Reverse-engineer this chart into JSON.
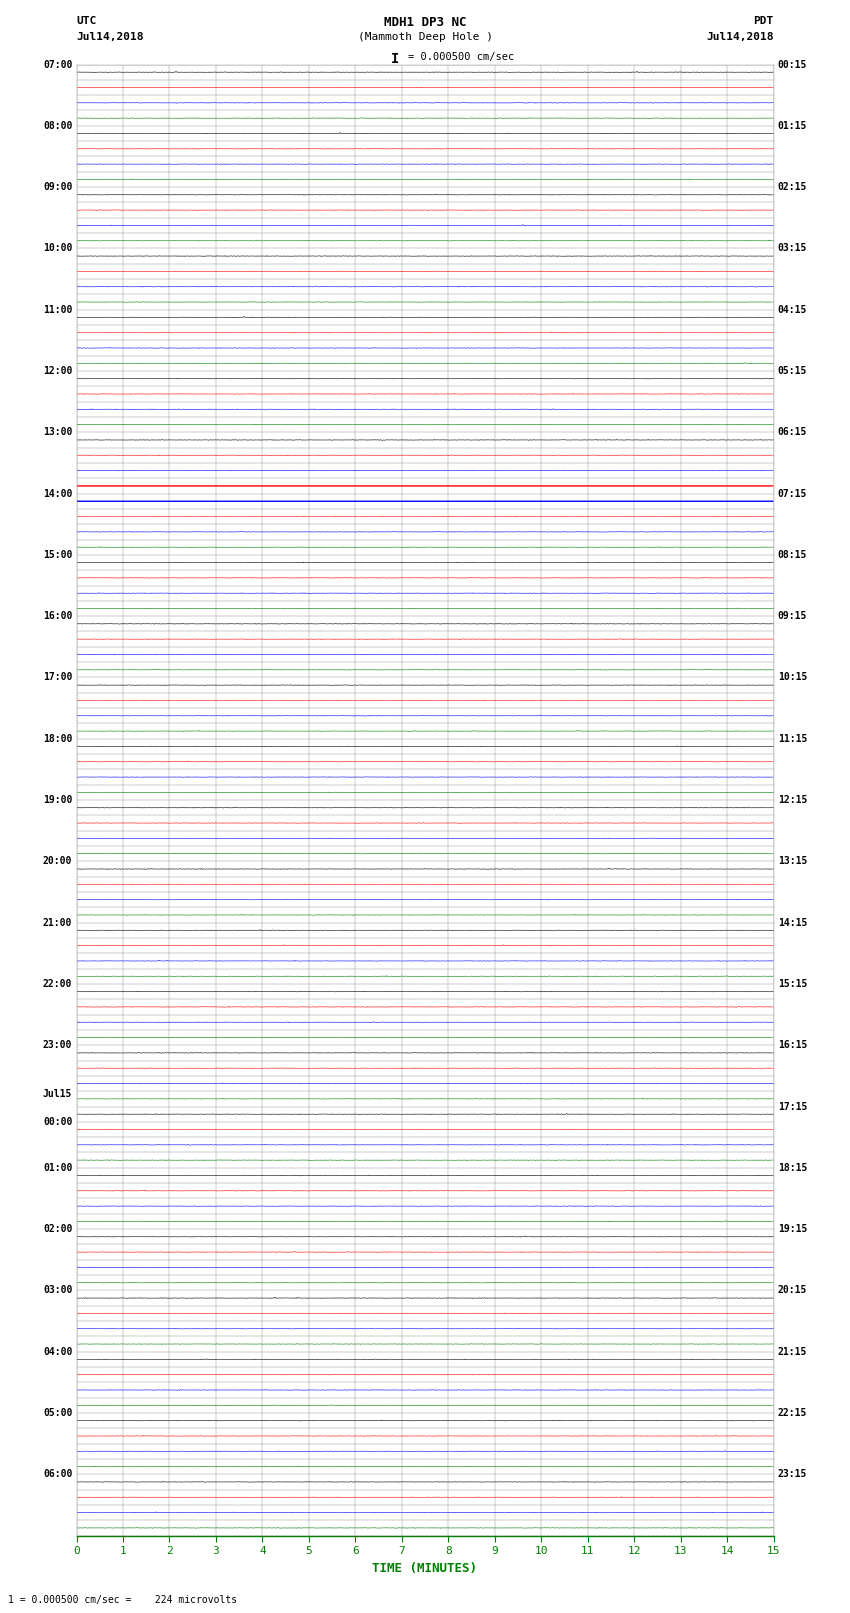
{
  "title_line1": "MDH1 DP3 NC",
  "title_line2": "(Mammoth Deep Hole )",
  "scale_label": "= 0.000500 cm/sec",
  "scale_bar": "I",
  "left_label_top": "UTC",
  "left_label_date": "Jul14,2018",
  "right_label_top": "PDT",
  "right_label_date": "Jul14,2018",
  "bottom_note": "1 = 0.000500 cm/sec =    224 microvolts",
  "xlabel": "TIME (MINUTES)",
  "left_times": [
    "07:00",
    "",
    "",
    "",
    "08:00",
    "",
    "",
    "",
    "09:00",
    "",
    "",
    "",
    "10:00",
    "",
    "",
    "",
    "11:00",
    "",
    "",
    "",
    "12:00",
    "",
    "",
    "",
    "13:00",
    "",
    "",
    "",
    "14:00",
    "",
    "",
    "",
    "15:00",
    "",
    "",
    "",
    "16:00",
    "",
    "",
    "",
    "17:00",
    "",
    "",
    "",
    "18:00",
    "",
    "",
    "",
    "19:00",
    "",
    "",
    "",
    "20:00",
    "",
    "",
    "",
    "21:00",
    "",
    "",
    "",
    "22:00",
    "",
    "",
    "",
    "23:00",
    "",
    "",
    "",
    "Jul15",
    "00:00",
    "",
    "",
    "01:00",
    "",
    "",
    "",
    "02:00",
    "",
    "",
    "",
    "03:00",
    "",
    "",
    "",
    "04:00",
    "",
    "",
    "",
    "05:00",
    "",
    "",
    "",
    "06:00",
    "",
    "",
    ""
  ],
  "right_times": [
    "00:15",
    "",
    "",
    "",
    "01:15",
    "",
    "",
    "",
    "02:15",
    "",
    "",
    "",
    "03:15",
    "",
    "",
    "",
    "04:15",
    "",
    "",
    "",
    "05:15",
    "",
    "",
    "",
    "06:15",
    "",
    "",
    "",
    "07:15",
    "",
    "",
    "",
    "08:15",
    "",
    "",
    "",
    "09:15",
    "",
    "",
    "",
    "10:15",
    "",
    "",
    "",
    "11:15",
    "",
    "",
    "",
    "12:15",
    "",
    "",
    "",
    "13:15",
    "",
    "",
    "",
    "14:15",
    "",
    "",
    "",
    "15:15",
    "",
    "",
    "",
    "16:15",
    "",
    "",
    "",
    "17:15",
    "",
    "",
    "",
    "18:15",
    "",
    "",
    "",
    "19:15",
    "",
    "",
    "",
    "20:15",
    "",
    "",
    "",
    "21:15",
    "",
    "",
    "",
    "22:15",
    "",
    "",
    "",
    "23:15",
    "",
    "",
    ""
  ],
  "n_rows": 96,
  "n_minutes": 15,
  "row_colors": [
    "#000000",
    "#ff0000",
    "#0000ff",
    "#008000"
  ],
  "special_blue_row": 28,
  "special_red_row": 27,
  "x_ticks": [
    0,
    1,
    2,
    3,
    4,
    5,
    6,
    7,
    8,
    9,
    10,
    11,
    12,
    13,
    14,
    15
  ],
  "noise_scale": 0.008,
  "spike_scale": 0.06
}
